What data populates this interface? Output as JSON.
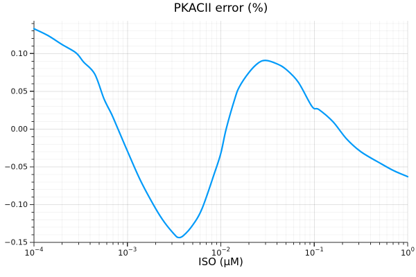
{
  "chart_data": {
    "type": "line",
    "title": "PKACII error (%)",
    "xlabel": "ISO (μM)",
    "ylabel": "",
    "x_scale": "log10",
    "xlim": [
      0.0001,
      1.0
    ],
    "ylim": [
      -0.15,
      0.1435
    ],
    "grid": true,
    "legend": "none",
    "line_color": "#009af9",
    "x_tick_exponents": [
      -4,
      -3,
      -2,
      -1,
      0
    ],
    "y_ticks": [
      0.1,
      0.05,
      0.0,
      -0.05,
      -0.1,
      -0.15
    ],
    "y_tick_labels": [
      "0.10",
      "0.05",
      "0.00",
      "−0.05",
      "−0.10",
      "−0.15"
    ],
    "y_minor_step": 0.01,
    "series": [
      {
        "name": "PKACII error",
        "x": [
          0.0001,
          0.000141,
          0.0002,
          0.000282,
          0.000339,
          0.000447,
          0.000562,
          0.000676,
          0.000794,
          0.001,
          0.00138,
          0.002,
          0.00251,
          0.00316,
          0.0035,
          0.00398,
          0.00501,
          0.00631,
          0.00851,
          0.01,
          0.0114,
          0.0141,
          0.0158,
          0.02,
          0.0251,
          0.0302,
          0.0398,
          0.0501,
          0.0676,
          0.0946,
          0.112,
          0.158,
          0.222,
          0.316,
          0.522,
          0.708,
          1.0
        ],
        "y": [
          0.133,
          0.124,
          0.112,
          0.101,
          0.089,
          0.073,
          0.04,
          0.02,
          0.0,
          -0.029,
          -0.068,
          -0.105,
          -0.124,
          -0.139,
          -0.1435,
          -0.141,
          -0.127,
          -0.105,
          -0.059,
          -0.032,
          0.0,
          0.04,
          0.056,
          0.075,
          0.0875,
          0.091,
          0.0865,
          0.079,
          0.062,
          0.03,
          0.026,
          0.01,
          -0.013,
          -0.03,
          -0.046,
          -0.055,
          -0.063
        ]
      }
    ]
  }
}
